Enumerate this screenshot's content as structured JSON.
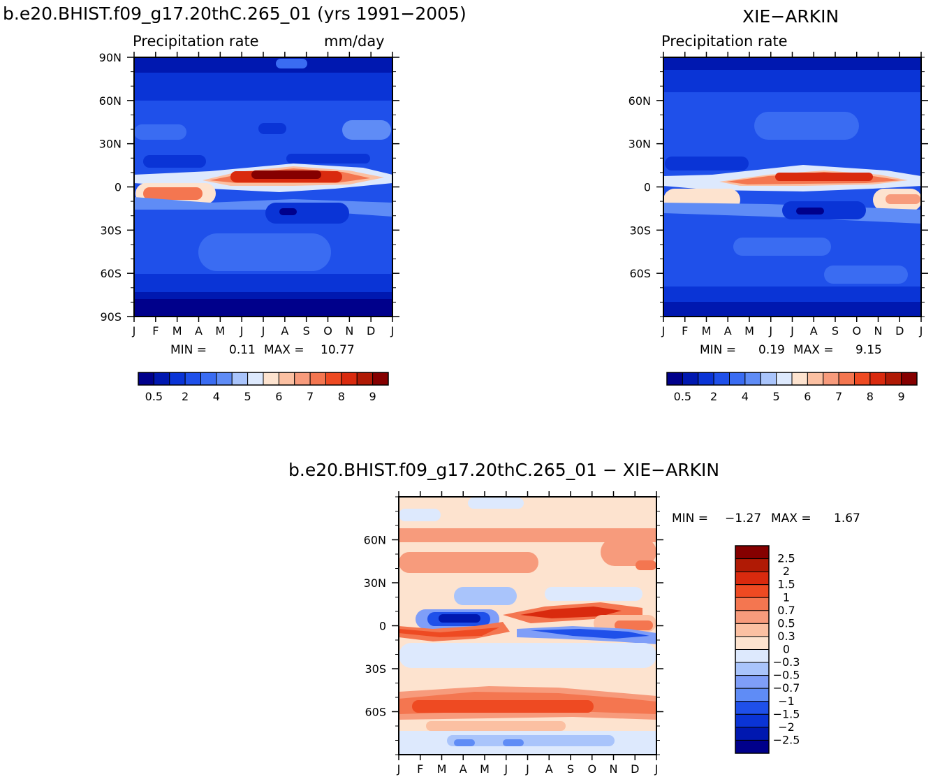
{
  "panels": {
    "model": {
      "title": "b.e20.BHIST.f09_g17.20thC.265_01 (yrs 1991−2005)",
      "left_string": "Precipitation rate",
      "right_string": "mm/day",
      "min_label": "MIN =",
      "min_value": "0.11",
      "max_label": "MAX =",
      "max_value": "10.77"
    },
    "obs": {
      "title": "XIE−ARKIN",
      "left_string": "Precipitation rate",
      "min_label": "MIN =",
      "min_value": "0.19",
      "max_label": "MAX =",
      "max_value": "9.15"
    },
    "diff": {
      "title": "b.e20.BHIST.f09_g17.20thC.265_01 − XIE−ARKIN",
      "min_label": "MIN =",
      "min_value": "−1.27",
      "max_label": "MAX =",
      "max_value": "1.67"
    }
  },
  "chart_data": [
    {
      "type": "heatmap",
      "title": "b.e20.BHIST.f09_g17.20thC.265_01 (yrs 1991−2005)",
      "subtitle_left": "Precipitation rate",
      "subtitle_right": "mm/day",
      "x_ticks": [
        "J",
        "F",
        "M",
        "A",
        "M",
        "J",
        "J",
        "A",
        "S",
        "O",
        "N",
        "D",
        "J"
      ],
      "y_ticks": [
        "90N",
        "60N",
        "30N",
        "0",
        "30S",
        "60S",
        "90S"
      ],
      "ylim": [
        -90,
        90
      ],
      "min": 0.11,
      "max": 10.77,
      "colorbar_labels": [
        "0.5",
        "2",
        "4",
        "5",
        "6",
        "7",
        "8",
        "9"
      ],
      "colorbar_orientation": "horizontal"
    },
    {
      "type": "heatmap",
      "title": "XIE−ARKIN",
      "subtitle_left": "Precipitation rate",
      "x_ticks": [
        "J",
        "F",
        "M",
        "A",
        "M",
        "J",
        "J",
        "A",
        "S",
        "O",
        "N",
        "D",
        "J"
      ],
      "y_ticks": [
        "60N",
        "30N",
        "0",
        "30S",
        "60S"
      ],
      "min": 0.19,
      "max": 9.15,
      "colorbar_labels": [
        "0.5",
        "2",
        "4",
        "5",
        "6",
        "7",
        "8",
        "9"
      ],
      "colorbar_orientation": "horizontal"
    },
    {
      "type": "heatmap",
      "title": "b.e20.BHIST.f09_g17.20thC.265_01 − XIE−ARKIN",
      "x_ticks": [
        "J",
        "F",
        "M",
        "A",
        "M",
        "J",
        "J",
        "A",
        "S",
        "O",
        "N",
        "D",
        "J"
      ],
      "y_ticks": [
        "60N",
        "30N",
        "0",
        "30S",
        "60S"
      ],
      "min": -1.27,
      "max": 1.67,
      "colorbar_labels": [
        "2.5",
        "2",
        "1.5",
        "1",
        "0.7",
        "0.5",
        "0.3",
        "0",
        "−0.3",
        "−0.5",
        "−0.7",
        "−1",
        "−1.5",
        "−2",
        "−2.5"
      ],
      "colorbar_orientation": "vertical"
    }
  ],
  "colors": {
    "seq": [
      "#00008b",
      "#0018b0",
      "#0a34d6",
      "#1f50ea",
      "#3a6cf2",
      "#5f8cf6",
      "#a9c4fb",
      "#dde9fd",
      "#fde3cf",
      "#fbc0a2",
      "#f79b7c",
      "#f47650",
      "#ee4a22",
      "#d92a0e",
      "#b01a05",
      "#850000"
    ],
    "div": [
      "#850000",
      "#b01a05",
      "#d92a0e",
      "#ee4a22",
      "#f47650",
      "#f79b7c",
      "#fbc0a2",
      "#fde3cf",
      "#dde9fd",
      "#a9c4fb",
      "#7f9ef8",
      "#5f8cf6",
      "#1f50ea",
      "#0a34d6",
      "#0018b0",
      "#00008b"
    ]
  }
}
